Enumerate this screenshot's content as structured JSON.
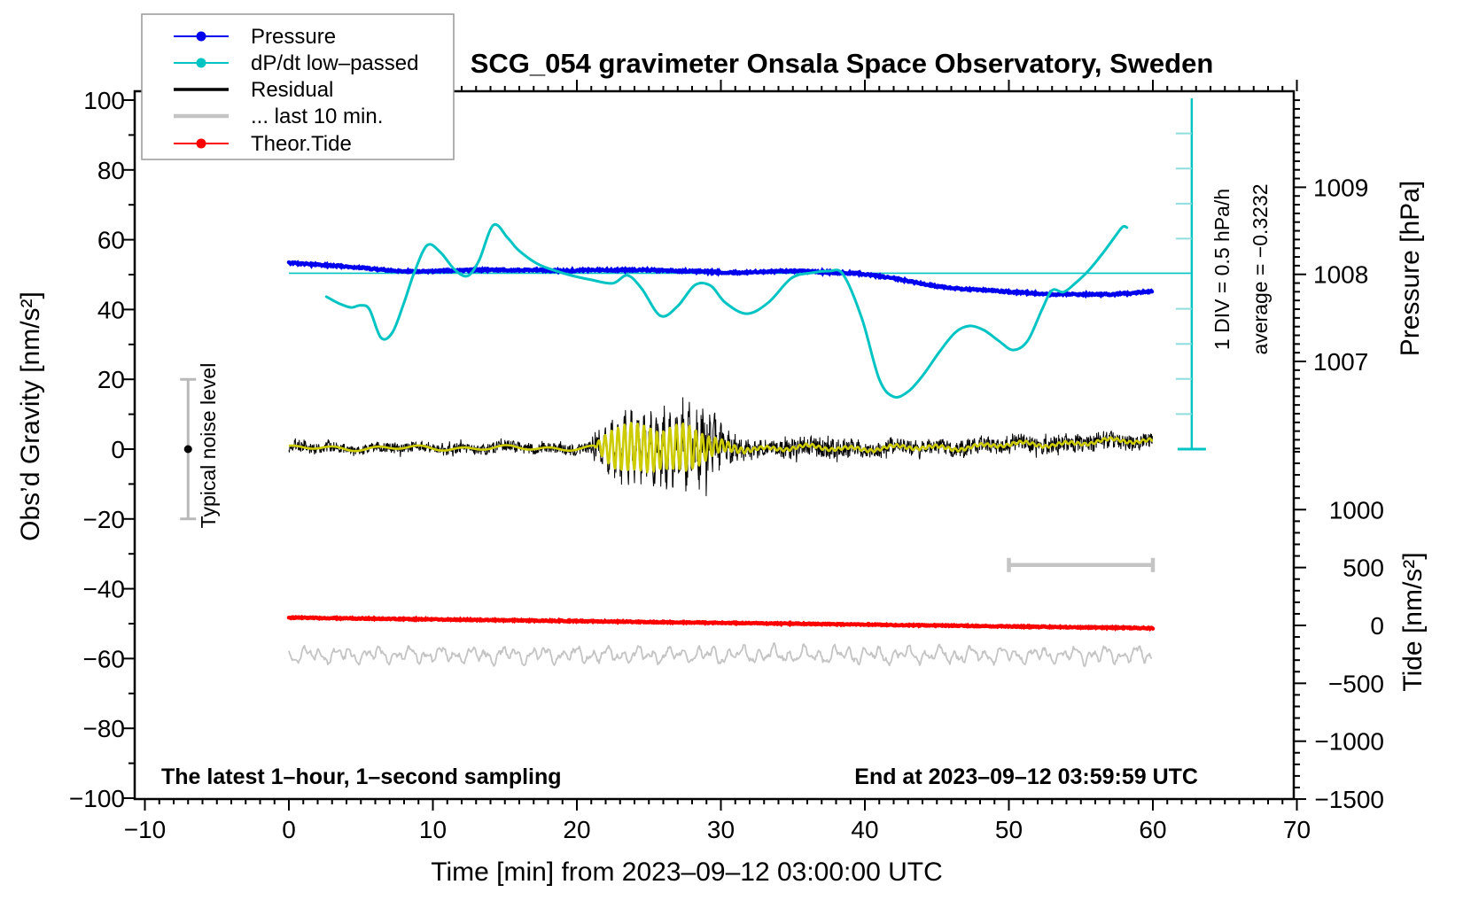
{
  "title": "SCG_054 gravimeter Onsala Space Observatory, Sweden",
  "annotations": {
    "sampling_note": "The latest 1–hour, 1–second sampling",
    "end_note": "End at 2023–09–12 03:59:59 UTC",
    "div_scale_label": "1 DIV = 0.5 hPa/h",
    "average_label": "average = −0.3232",
    "noise_label": "Typical noise level"
  },
  "legend": {
    "items": [
      {
        "label": "Pressure",
        "color": "#0000ee",
        "marker": "dot",
        "line_width": 2
      },
      {
        "label": "dP/dt low–passed",
        "color": "#00c4c4",
        "marker": "dot",
        "line_width": 2
      },
      {
        "label": "Residual",
        "color": "#000000",
        "marker": "none",
        "line_width": 3.5
      },
      {
        "label": "... last 10 min.",
        "color": "#c4c4c4",
        "marker": "none",
        "line_width": 4.5
      },
      {
        "label": "Theor.Tide",
        "color": "#ff0000",
        "marker": "dot",
        "line_width": 2
      }
    ]
  },
  "chart_data": {
    "type": "line",
    "title": "SCG_054 gravimeter Onsala Space Observatory, Sweden",
    "grid": false,
    "legend_position": "top-left",
    "x_axis": {
      "label": "Time [min] from 2023–09–12 03:00:00 UTC",
      "range": [
        -10,
        70
      ],
      "major_tick": 10,
      "minor_tick": 1,
      "tick_labels": [
        "−10",
        "0",
        "10",
        "20",
        "30",
        "40",
        "50",
        "60",
        "70"
      ]
    },
    "y_axis_left": {
      "label": "Obs’d Gravity [nm/s²]",
      "range": [
        -100,
        100
      ],
      "major_tick": 20,
      "minor_tick": 10,
      "tick_labels": [
        "−100",
        "−80",
        "−60",
        "−40",
        "−20",
        "0",
        "20",
        "40",
        "60",
        "80",
        "100"
      ]
    },
    "y_axis_right_pressure": {
      "label": "Pressure [hPa]",
      "visible_range": [
        1006.0,
        1010.1
      ],
      "major_tick_values": [
        1007,
        1008,
        1009
      ],
      "tick_labels": [
        "1007",
        "1008",
        "1009"
      ],
      "minor_tick": 0.1
    },
    "y_axis_right_tide": {
      "label": "Tide [nm/s²]",
      "range": [
        -1500,
        1500
      ],
      "tick_values": [
        1000,
        500,
        0,
        -500,
        -1000,
        -1500
      ],
      "tick_labels": [
        "1000",
        "500",
        "0",
        "−500",
        "−1000",
        "−1500"
      ],
      "minor_tick": 100
    },
    "series": [
      {
        "name": "Pressure",
        "color": "#0000ee",
        "units": "hPa",
        "points": [
          [
            0,
            1008.13
          ],
          [
            2,
            1008.11
          ],
          [
            4,
            1008.09
          ],
          [
            6,
            1008.06
          ],
          [
            7.5,
            1008.04
          ],
          [
            9,
            1008.03
          ],
          [
            11,
            1008.04
          ],
          [
            13,
            1008.05
          ],
          [
            15,
            1008.05
          ],
          [
            17,
            1008.05
          ],
          [
            19,
            1008.04
          ],
          [
            21,
            1008.05
          ],
          [
            23,
            1008.05
          ],
          [
            25,
            1008.05
          ],
          [
            27,
            1008.04
          ],
          [
            29,
            1008.03
          ],
          [
            31,
            1008.02
          ],
          [
            33,
            1008.03
          ],
          [
            35,
            1008.04
          ],
          [
            36.5,
            1008.03
          ],
          [
            38,
            1008.02
          ],
          [
            39.5,
            1008.01
          ],
          [
            41,
            1007.98
          ],
          [
            42.5,
            1007.94
          ],
          [
            44,
            1007.89
          ],
          [
            45.5,
            1007.85
          ],
          [
            47,
            1007.83
          ],
          [
            49,
            1007.81
          ],
          [
            51,
            1007.79
          ],
          [
            53,
            1007.77
          ],
          [
            55,
            1007.77
          ],
          [
            57,
            1007.77
          ],
          [
            58.5,
            1007.78
          ],
          [
            60,
            1007.81
          ]
        ]
      },
      {
        "name": "dP/dt low–passed",
        "color": "#00c4c4",
        "units": "hPa/h",
        "average_hPa_per_h": -0.3232,
        "div_hPa_per_h": 0.5,
        "points": [
          [
            2.6,
            -0.657
          ],
          [
            3.5,
            -0.756
          ],
          [
            4.3,
            -0.811
          ],
          [
            5.0,
            -0.781
          ],
          [
            5.6,
            -0.841
          ],
          [
            6.4,
            -1.244
          ],
          [
            7.2,
            -1.164
          ],
          [
            8.0,
            -0.741
          ],
          [
            8.7,
            -0.318
          ],
          [
            9.6,
            0.075
          ],
          [
            10.5,
            -0.02
          ],
          [
            11.5,
            -0.268
          ],
          [
            12.4,
            -0.363
          ],
          [
            13.2,
            -0.144
          ],
          [
            14.2,
            0.363
          ],
          [
            15.2,
            0.179
          ],
          [
            16.0,
            -0.005
          ],
          [
            17.4,
            -0.204
          ],
          [
            19.4,
            -0.343
          ],
          [
            21.0,
            -0.418
          ],
          [
            22.5,
            -0.467
          ],
          [
            23.5,
            -0.353
          ],
          [
            24.5,
            -0.542
          ],
          [
            25.8,
            -0.93
          ],
          [
            27.0,
            -0.791
          ],
          [
            28.2,
            -0.492
          ],
          [
            29.3,
            -0.502
          ],
          [
            30.3,
            -0.741
          ],
          [
            31.8,
            -0.9
          ],
          [
            33.3,
            -0.741
          ],
          [
            34.9,
            -0.393
          ],
          [
            36.3,
            -0.318
          ],
          [
            37.5,
            -0.293
          ],
          [
            38.5,
            -0.343
          ],
          [
            39.8,
            -0.975
          ],
          [
            41.0,
            -1.836
          ],
          [
            42.0,
            -2.084
          ],
          [
            43.0,
            -2.01
          ],
          [
            44.0,
            -1.786
          ],
          [
            45.2,
            -1.438
          ],
          [
            46.3,
            -1.164
          ],
          [
            47.3,
            -1.074
          ],
          [
            48.3,
            -1.139
          ],
          [
            49.3,
            -1.288
          ],
          [
            50.3,
            -1.418
          ],
          [
            51.3,
            -1.288
          ],
          [
            52.3,
            -0.841
          ],
          [
            53.0,
            -0.567
          ],
          [
            53.8,
            -0.592
          ],
          [
            54.6,
            -0.467
          ],
          [
            55.5,
            -0.293
          ],
          [
            56.5,
            -0.044
          ],
          [
            57.3,
            0.179
          ],
          [
            57.9,
            0.338
          ],
          [
            58.2,
            0.328
          ]
        ]
      },
      {
        "name": "Residual",
        "color": "#000000",
        "units": "nm/s²",
        "center": 0.3,
        "burst": {
          "start_min": 21.4,
          "end_min": 30.5,
          "max_spike_nm_s2": 16
        },
        "noise_envelope": [
          [
            0,
            1.5
          ],
          [
            20.5,
            1.7
          ],
          [
            21.8,
            4
          ],
          [
            23,
            5.5
          ],
          [
            24.5,
            6
          ],
          [
            25.5,
            7
          ],
          [
            26.5,
            7.5
          ],
          [
            27.8,
            8.5
          ],
          [
            28.6,
            10
          ],
          [
            29.1,
            12
          ],
          [
            29.6,
            8
          ],
          [
            30.2,
            5
          ],
          [
            31,
            3.8
          ],
          [
            32,
            3
          ],
          [
            33.5,
            2.4
          ],
          [
            36,
            2.8
          ],
          [
            38,
            2.9
          ],
          [
            40,
            2.4
          ],
          [
            47,
            2.3
          ],
          [
            52,
            2.6
          ],
          [
            60,
            2.5
          ]
        ]
      },
      {
        "name": "Residual low-passed",
        "color": "#cccc00",
        "units": "nm/s²",
        "osc_period_min": 0.45,
        "amp_envelope": [
          [
            0,
            0
          ],
          [
            21.2,
            0
          ],
          [
            21.8,
            3
          ],
          [
            22.5,
            5.5
          ],
          [
            23.5,
            6.8
          ],
          [
            25,
            6.5
          ],
          [
            25.8,
            5.2
          ],
          [
            26.8,
            6.3
          ],
          [
            27.6,
            6.8
          ],
          [
            28.4,
            5
          ],
          [
            29.2,
            3
          ],
          [
            30,
            1.8
          ],
          [
            31,
            1
          ],
          [
            32.5,
            0.45
          ],
          [
            60,
            0.4
          ]
        ]
      },
      {
        "name": "... last 10 min.",
        "color": "#c4c4c4",
        "units": "nm/s² (display offset)",
        "center": -59,
        "amp": 2.6
      },
      {
        "name": "Theor.Tide",
        "color": "#ff0000",
        "units": "nm/s² (tide axis)",
        "points": [
          [
            0,
            67
          ],
          [
            15,
            45
          ],
          [
            30,
            22
          ],
          [
            45,
            -1
          ],
          [
            60,
            -24
          ]
        ]
      }
    ],
    "markers": {
      "noise_bar": {
        "x_min": -7,
        "center_nm_s2": 0,
        "half_range_nm_s2": 20
      },
      "last10_bar": {
        "from_min": 50,
        "to_min": 60,
        "level_nm_s2": -33.2
      },
      "average_line": {
        "value_hPa_per_h": -0.3232,
        "from_min": 0
      },
      "div_bar": {
        "x_min": 62.7,
        "divisions": 10,
        "div_value_hPa_per_h": 0.5,
        "span_gravity_nm_s2": [
          0,
          100.5
        ]
      }
    }
  },
  "colors": {
    "pressure": "#0000ee",
    "dpdt": "#00c4c4",
    "dpdt_tick": "#8fdede",
    "residual": "#000000",
    "residual_lowpass": "#cccc00",
    "last10": "#c4c4c4",
    "tide": "#ff0000",
    "noise_bar": "#b9b9b9",
    "frame": "#000000",
    "legend_border": "#999999"
  }
}
